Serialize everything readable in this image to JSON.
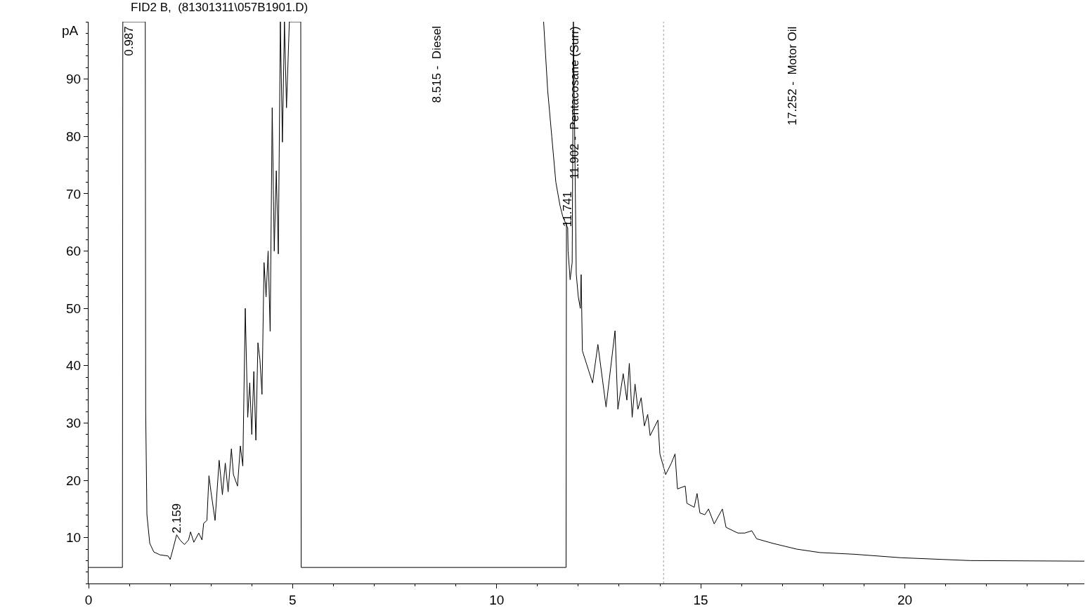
{
  "chart_data": {
    "type": "line",
    "title": "FID2 B,  (81301311\\057B1901.D)",
    "ylabel": "pA",
    "series": [
      {
        "color": "#000000",
        "x": [
          0,
          0.83,
          0.84,
          1.39,
          1.4,
          1.43,
          1.5,
          1.6,
          1.75,
          1.95,
          2.0,
          2.05,
          2.159,
          2.25,
          2.35,
          2.45,
          2.5,
          2.58,
          2.7,
          2.78,
          2.82,
          2.9,
          2.95,
          3.0,
          3.1,
          3.2,
          3.28,
          3.35,
          3.42,
          3.5,
          3.55,
          3.65,
          3.72,
          3.78,
          3.84,
          3.9,
          3.95,
          4.0,
          4.05,
          4.1,
          4.15,
          4.2,
          4.25,
          4.3,
          4.35,
          4.4,
          4.45,
          4.5,
          4.55,
          4.6,
          4.65,
          4.7,
          4.75,
          4.8,
          4.85,
          4.92,
          5.0,
          5.2,
          5.21,
          11.7,
          11.71
        ],
        "values": [
          4.8,
          4.8,
          100,
          100,
          32,
          14,
          9,
          7.5,
          7.0,
          6.8,
          6.2,
          7.5,
          10.5,
          9.5,
          8.8,
          9.6,
          11,
          9.2,
          10.8,
          9.6,
          12.5,
          13,
          20.8,
          18,
          13,
          23.5,
          17.5,
          23,
          18,
          25.5,
          21,
          19,
          26,
          22.5,
          50,
          31,
          37,
          28,
          39,
          27,
          44,
          41,
          35,
          58,
          52,
          60,
          46,
          85,
          60,
          74,
          59.5,
          100,
          79,
          100,
          85,
          100,
          100,
          100,
          4.8,
          4.8,
          65
        ]
      },
      {
        "color": "#000000",
        "x": [
          11.15,
          11.25,
          11.35,
          11.45,
          11.55,
          11.62,
          11.741,
          11.75,
          11.8,
          11.85,
          11.88,
          11.95,
          12.0,
          12.05,
          12.07,
          12.1,
          12.35,
          12.48,
          12.68,
          12.9,
          12.97,
          13.1,
          13.19,
          13.25,
          13.32,
          13.39,
          13.46,
          13.54,
          13.62,
          13.7,
          13.76,
          13.88,
          13.95,
          14.0,
          14.14,
          14.28,
          14.37,
          14.43,
          14.62,
          14.66,
          14.84,
          14.91,
          14.98,
          15.1,
          15.19,
          15.33,
          15.53,
          15.62,
          15.91,
          16.08,
          16.25,
          16.37,
          16.77,
          17.35,
          17.92,
          18.77,
          19.9,
          21.6,
          24.4
        ],
        "values": [
          100,
          88,
          80,
          72,
          68,
          66,
          64,
          60,
          55,
          58,
          100,
          56,
          52,
          50,
          55.9,
          42.6,
          37,
          43.7,
          32.8,
          46.1,
          32.4,
          38.6,
          34,
          40.4,
          31,
          36.8,
          32.4,
          34.4,
          29.5,
          31.5,
          27.8,
          29.5,
          30.5,
          24.6,
          21,
          23,
          24.6,
          18.5,
          19,
          16,
          15.3,
          17.7,
          14.3,
          14,
          15,
          12.4,
          15,
          11.8,
          10.8,
          10.8,
          11.2,
          9.8,
          9,
          8,
          7.4,
          7.1,
          6.5,
          6.0,
          5.9
        ]
      }
    ],
    "xlim": [
      0,
      24.4
    ],
    "ylim": [
      2,
      100
    ],
    "xticks": [
      0,
      5,
      10,
      15,
      20
    ],
    "yticks": [
      10,
      20,
      30,
      40,
      50,
      60,
      70,
      80,
      90
    ],
    "marker": "none",
    "line_style": "solid",
    "ref_lines": [
      {
        "axis": "x",
        "value": 14.09,
        "label": null,
        "color": "#999999",
        "line_style": "dotted"
      }
    ],
    "annotations": [
      "0.987",
      {
        "text": "2.159",
        "x": 2.159,
        "y": 10.5
      },
      "8.515 -  Diesel",
      {
        "text": "11.741",
        "x": 11.741,
        "y": 64
      },
      "11.902 -  Pentacosane (Surr)",
      "17.252 -  Motor Oil"
    ]
  }
}
